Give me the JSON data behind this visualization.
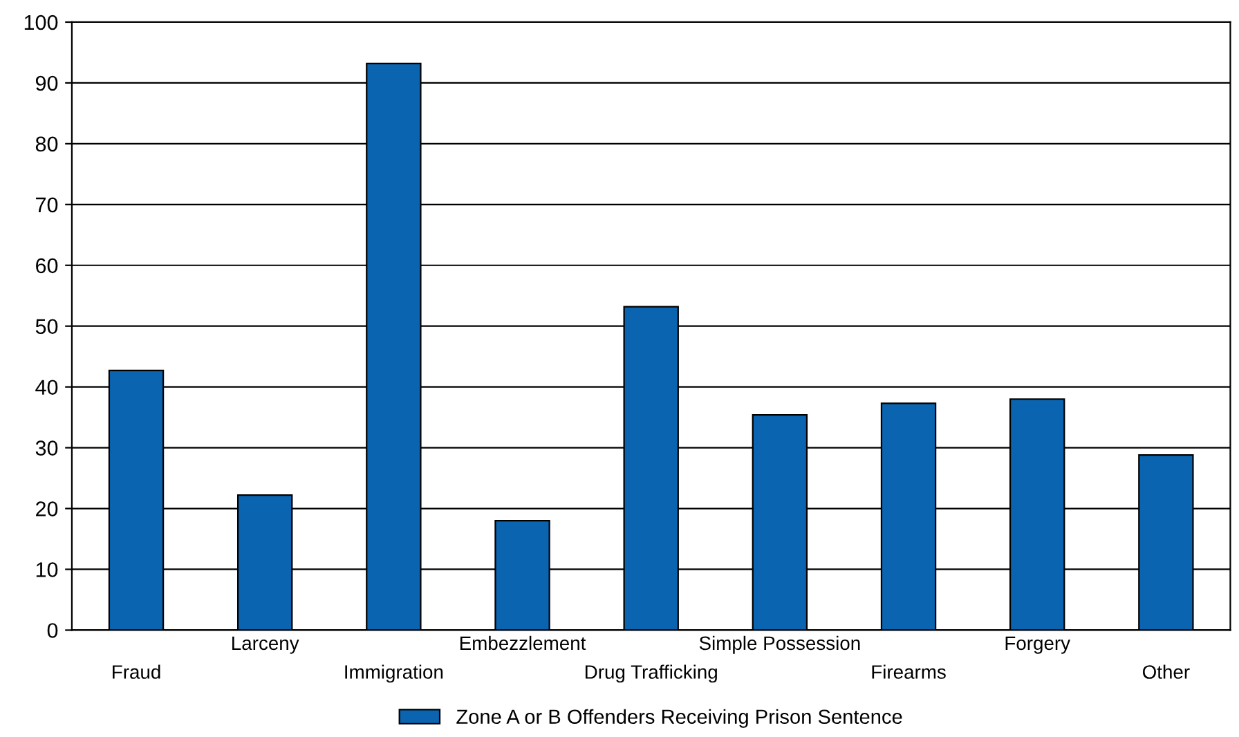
{
  "chart_data": {
    "type": "bar",
    "categories": [
      "Fraud",
      "Larceny",
      "Immigration",
      "Embezzlement",
      "Drug Trafficking",
      "Simple Possession",
      "Firearms",
      "Forgery",
      "Other"
    ],
    "series": [
      {
        "name": "Zone A or B Offenders Receiving Prison Sentence",
        "color": "#0a64b0",
        "values": [
          42.7,
          22.2,
          93.2,
          18.0,
          53.2,
          35.4,
          37.3,
          38.0,
          28.8
        ]
      }
    ],
    "ylim": [
      0,
      100
    ],
    "yticks": [
      0,
      10,
      20,
      30,
      40,
      50,
      60,
      70,
      80,
      90,
      100
    ],
    "grid": "y",
    "legend": "bottom"
  }
}
